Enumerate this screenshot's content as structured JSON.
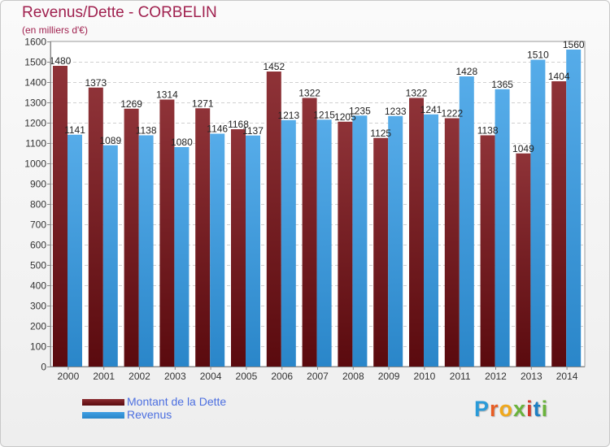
{
  "title": "Revenus/Dette - CORBELIN",
  "subtitle": "(en milliers d'€)",
  "chart_data": {
    "type": "bar",
    "categories": [
      "2000",
      "2001",
      "2002",
      "2003",
      "2004",
      "2005",
      "2006",
      "2007",
      "2008",
      "2009",
      "2010",
      "2011",
      "2012",
      "2013",
      "2014"
    ],
    "series": [
      {
        "name": "Montant de la Dette",
        "color": "#8a2a2f",
        "values": [
          1480,
          1373,
          1269,
          1314,
          1271,
          1168,
          1452,
          1322,
          1205,
          1125,
          1322,
          1222,
          1138,
          1049,
          1404
        ],
        "labels": [
          "1480",
          "1373",
          "1269",
          "1314",
          "1271",
          "1168",
          "1452",
          "1322",
          "1205",
          "1125",
          "1322",
          "1222",
          "1138",
          "1049",
          "1404"
        ]
      },
      {
        "name": "Revenus",
        "color": "#3e9ee3",
        "values": [
          1141,
          1089,
          1138,
          1080,
          1146,
          1137,
          1213,
          1215,
          1235,
          1233,
          1241,
          1428,
          1365,
          1510,
          1560
        ],
        "labels": [
          "1141",
          "1089",
          "1138",
          "1080",
          "1146",
          "1137",
          "1213",
          "1215",
          "1235",
          "1233",
          "1241",
          "1428",
          "1365",
          "1510",
          "1560"
        ]
      }
    ],
    "yticks": [
      "0",
      "100",
      "200",
      "300",
      "400",
      "500",
      "600",
      "700",
      "800",
      "900",
      "1000",
      "1100",
      "1200",
      "1300",
      "1400",
      "1500",
      "1600"
    ],
    "ylim": [
      0,
      1600
    ],
    "grid": true,
    "legend_position": "bottom-left"
  },
  "legend": [
    {
      "label": "Montant de la Dette",
      "color": "#8a2a2f"
    },
    {
      "label": "Revenus",
      "color": "#3e9ee3"
    }
  ],
  "brand": {
    "letters": [
      "P",
      "r",
      "o",
      "x",
      "i",
      "t",
      "i"
    ]
  }
}
